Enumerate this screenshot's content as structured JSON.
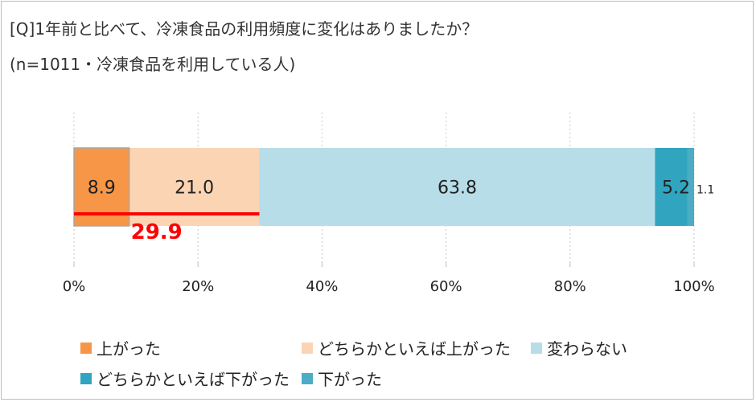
{
  "title_line1": "[Q]1年前と比べて、冷凍食品の利用頻度に変化はありましたか？",
  "title_line2": "(n=1011・冷凍食品を利用している人)",
  "chart_data": {
    "type": "bar",
    "orientation": "horizontal",
    "stacked": true,
    "xlim": [
      0,
      100
    ],
    "x_ticks": [
      "0%",
      "20%",
      "40%",
      "60%",
      "80%",
      "100%"
    ],
    "grid": "vertical dotted",
    "legend_position": "bottom",
    "series": [
      {
        "name": "上がった",
        "value": 8.9,
        "label": "8.9",
        "color": "#F79646"
      },
      {
        "name": "どちらかといえば上がった",
        "value": 21.0,
        "label": "21.0",
        "color": "#FBD4B4"
      },
      {
        "name": "変わらない",
        "value": 63.8,
        "label": "63.8",
        "color": "#B7DDE8"
      },
      {
        "name": "どちらかといえば下がった",
        "value": 5.2,
        "label": "5.2",
        "color": "#31A5BF"
      },
      {
        "name": "下がった",
        "value": 1.1,
        "label": "1.1",
        "color": "#4BACC6"
      }
    ],
    "annotation": {
      "text": "29.9",
      "color": "#FF0000",
      "from": 0,
      "to": 29.9
    }
  }
}
